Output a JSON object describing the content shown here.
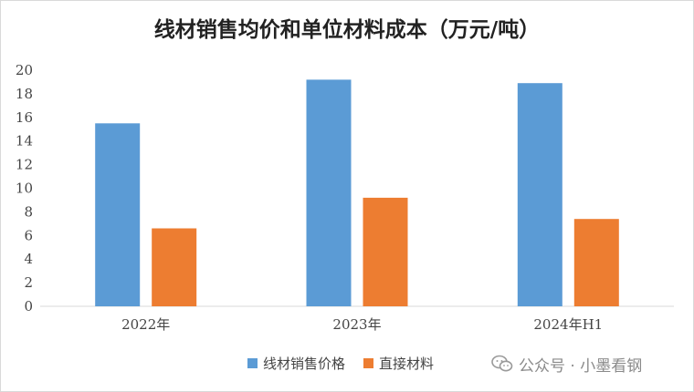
{
  "chart_data": {
    "type": "bar",
    "title": "线材销售均价和单位材料成本（万元/吨）",
    "categories": [
      "2022年",
      "2023年",
      "2024年H1"
    ],
    "series": [
      {
        "name": "线材销售价格",
        "values": [
          15.5,
          19.2,
          18.9
        ],
        "color": "#5B9BD5"
      },
      {
        "name": "直接材料",
        "values": [
          6.6,
          9.2,
          7.4
        ],
        "color": "#ED7D31"
      }
    ],
    "yticks": [
      "0",
      "2",
      "4",
      "6",
      "8",
      "10",
      "12",
      "14",
      "16",
      "18",
      "20"
    ],
    "ylim": [
      0,
      20
    ],
    "grid": false,
    "legend_position": "bottom"
  },
  "watermark": {
    "icon": "wechat-icon",
    "text": "公众号 · 小墨看钢"
  }
}
